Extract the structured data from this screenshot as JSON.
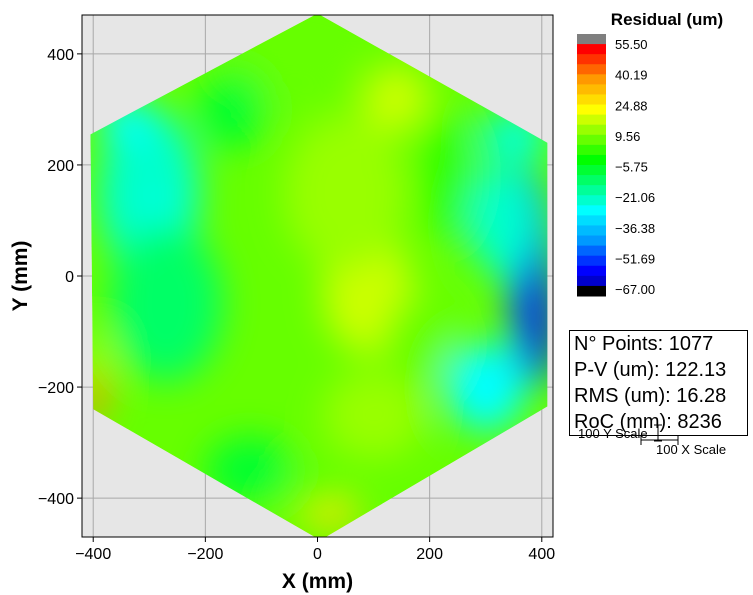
{
  "chart_data": {
    "type": "heatmap",
    "title": "",
    "xlabel": "X (mm)",
    "ylabel": "Y (mm)",
    "xlim": [
      -420,
      420
    ],
    "ylim": [
      -470,
      470
    ],
    "xticks": [
      -400,
      -200,
      0,
      200,
      400
    ],
    "yticks": [
      -400,
      -200,
      0,
      200,
      400
    ],
    "xtick_labels": [
      "−400",
      "−200",
      "0",
      "200",
      "400"
    ],
    "ytick_labels": [
      "−400",
      "−200",
      "0",
      "200",
      "400"
    ],
    "grid": true,
    "region_outline": [
      [
        -5,
        470
      ],
      [
        5,
        470
      ],
      [
        410,
        240
      ],
      [
        410,
        -235
      ],
      [
        15,
        -470
      ],
      [
        -5,
        -470
      ],
      [
        -400,
        -240
      ],
      [
        -405,
        255
      ]
    ],
    "colorbar": {
      "title": "Residual (um)",
      "range": [
        -67.0,
        55.5
      ],
      "tick_values": [
        55.5,
        40.19,
        24.88,
        9.56,
        -5.75,
        -21.06,
        -36.38,
        -51.69,
        -67.0
      ],
      "tick_labels": [
        "55.50",
        "40.19",
        "24.88",
        "9.56",
        "−5.75",
        "−21.06",
        "−36.38",
        "−51.69",
        "−67.00"
      ],
      "colors": [
        "#7f7f7f",
        "#ff0000",
        "#ff3300",
        "#ff6600",
        "#ff9900",
        "#ffbb00",
        "#ffdd00",
        "#ffff00",
        "#ccff00",
        "#99ff00",
        "#66ff00",
        "#33ff00",
        "#00ff00",
        "#00ff33",
        "#00ff66",
        "#00ff99",
        "#00ffcc",
        "#00ffff",
        "#00ddff",
        "#00bbff",
        "#0099ff",
        "#0066ff",
        "#0033ff",
        "#0000ff",
        "#0000cc",
        "#000000"
      ]
    },
    "features": [
      {
        "x": -280,
        "y": 120,
        "value": -25
      },
      {
        "x": 380,
        "y": -10,
        "value": -45
      },
      {
        "x": 400,
        "y": -70,
        "value": -55
      },
      {
        "x": 360,
        "y": 260,
        "value": -25
      },
      {
        "x": -400,
        "y": -200,
        "value": 45
      },
      {
        "x": 20,
        "y": -430,
        "value": 30
      },
      {
        "x": 80,
        "y": -30,
        "value": 18
      },
      {
        "x": 150,
        "y": 320,
        "value": 20
      },
      {
        "x": 0,
        "y": 80,
        "value": 14
      }
    ]
  },
  "stats": {
    "points": "N° Points: 1077",
    "pv": "P-V (um): 122.13",
    "rms": "RMS (um): 16.28",
    "roc": "RoC (mm): 8236"
  },
  "scale_bar": {
    "y_label": "100 Y Scale",
    "x_label": "100 X Scale"
  }
}
